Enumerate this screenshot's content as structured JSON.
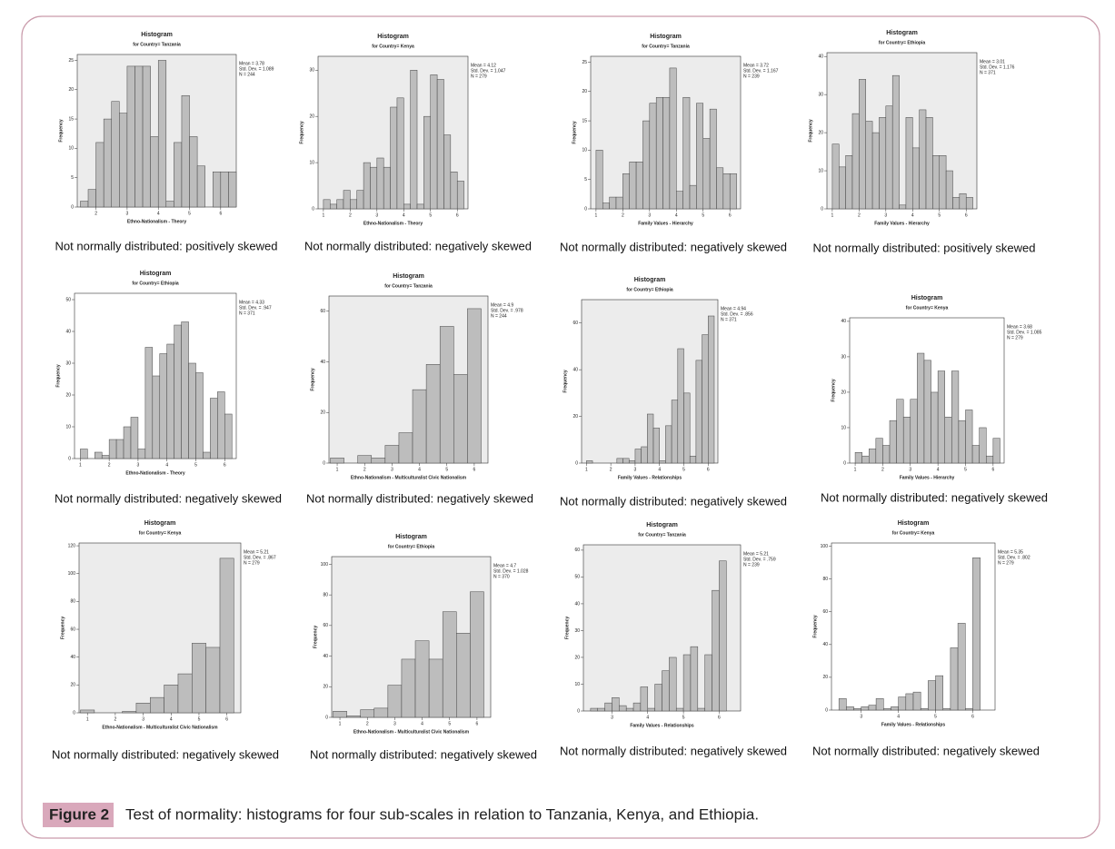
{
  "chart_data": [
    {
      "type": "histogram",
      "title": "Histogram",
      "subtitle": "for Country= Tanzania",
      "xlabel": "Ethno-Nationalism - Theory",
      "ylabel": "Frequency",
      "stats": [
        "Mean = 3.78",
        "Std. Dev. = 1.089",
        "N = 244"
      ],
      "xlim": [
        1.4,
        6.5
      ],
      "xticks": [
        2,
        3,
        4,
        5,
        6
      ],
      "ylim": [
        0,
        26
      ],
      "yticks": [
        0,
        5,
        10,
        15,
        20,
        25
      ],
      "bins": [
        1.5,
        1.75,
        2,
        2.25,
        2.5,
        2.75,
        3,
        3.25,
        3.5,
        3.75,
        4,
        4.25,
        4.5,
        4.75,
        5,
        5.25,
        5.5,
        5.75,
        6,
        6.25,
        6.5
      ],
      "values": [
        1,
        3,
        11,
        15,
        18,
        16,
        24,
        24,
        24,
        12,
        25,
        1,
        11,
        19,
        12,
        7,
        0,
        6,
        6,
        6
      ],
      "color": "#bdbdbd",
      "background": "#ececec"
    },
    {
      "type": "histogram",
      "title": "Histogram",
      "subtitle": "for Country= Kenya",
      "xlabel": "Ethno-Nationalism - Theory",
      "ylabel": "Frequency",
      "stats": [
        "Mean = 4.12",
        "Std. Dev. = 1.047",
        "N = 279"
      ],
      "xlim": [
        0.8,
        6.4
      ],
      "xticks": [
        1,
        2,
        3,
        4,
        5,
        6
      ],
      "ylim": [
        0,
        33
      ],
      "yticks": [
        0,
        10,
        20,
        30
      ],
      "bins": [
        1,
        1.25,
        1.5,
        1.75,
        2,
        2.25,
        2.5,
        2.75,
        3,
        3.25,
        3.5,
        3.75,
        4,
        4.25,
        4.5,
        4.75,
        5,
        5.25,
        5.5,
        5.75,
        6,
        6.25
      ],
      "values": [
        2,
        1,
        2,
        4,
        2,
        4,
        10,
        9,
        11,
        9,
        22,
        24,
        1,
        30,
        1,
        20,
        29,
        28,
        16,
        8,
        6
      ],
      "color": "#bdbdbd",
      "background": "#ececec"
    },
    {
      "type": "histogram",
      "title": "Histogram",
      "subtitle": "for Country= Tanzania",
      "xlabel": "Family Values - Hierarchy",
      "ylabel": "Frequency",
      "stats": [
        "Mean = 3.72",
        "Std. Dev. = 1.167",
        "N = 239"
      ],
      "xlim": [
        0.8,
        6.4
      ],
      "xticks": [
        1,
        2,
        3,
        4,
        5,
        6
      ],
      "ylim": [
        0,
        26
      ],
      "yticks": [
        0,
        5,
        10,
        15,
        20,
        25
      ],
      "bins": [
        1,
        1.25,
        1.5,
        1.75,
        2,
        2.25,
        2.5,
        2.75,
        3,
        3.25,
        3.5,
        3.75,
        4,
        4.25,
        4.5,
        4.75,
        5,
        5.25,
        5.5,
        5.75,
        6,
        6.25
      ],
      "values": [
        10,
        1,
        2,
        2,
        6,
        8,
        8,
        15,
        18,
        19,
        19,
        24,
        3,
        19,
        4,
        18,
        12,
        17,
        7,
        6,
        6
      ],
      "color": "#bdbdbd",
      "background": "#ececec"
    },
    {
      "type": "histogram",
      "title": "Histogram",
      "subtitle": "for Country= Ethiopia",
      "xlabel": "Family Values - Hierarchy",
      "ylabel": "Frequency",
      "stats": [
        "Mean = 3.01",
        "Std. Dev. = 1.176",
        "N = 371"
      ],
      "xlim": [
        0.8,
        6.4
      ],
      "xticks": [
        1,
        2,
        3,
        4,
        5,
        6
      ],
      "ylim": [
        0,
        41
      ],
      "yticks": [
        0,
        10,
        20,
        30,
        40
      ],
      "bins": [
        1,
        1.25,
        1.5,
        1.75,
        2,
        2.25,
        2.5,
        2.75,
        3,
        3.25,
        3.5,
        3.75,
        4,
        4.25,
        4.5,
        4.75,
        5,
        5.25,
        5.5,
        5.75,
        6,
        6.25
      ],
      "values": [
        17,
        11,
        14,
        25,
        34,
        23,
        20,
        24,
        27,
        35,
        1,
        24,
        16,
        26,
        24,
        14,
        14,
        10,
        3,
        4,
        3
      ],
      "color": "#bdbdbd",
      "background": "#ececec"
    },
    {
      "type": "histogram",
      "title": "Histogram",
      "subtitle": "for Country= Ethiopia",
      "xlabel": "Ethno-Nationalism - Theory",
      "ylabel": "Frequency",
      "stats": [
        "Mean = 4.33",
        "Std. Dev. = .947",
        "N = 371"
      ],
      "xlim": [
        0.8,
        6.4
      ],
      "xticks": [
        1,
        2,
        3,
        4,
        5,
        6
      ],
      "ylim": [
        0,
        52
      ],
      "yticks": [
        0,
        10,
        20,
        30,
        40,
        50
      ],
      "bins": [
        1,
        1.25,
        1.5,
        1.75,
        2,
        2.25,
        2.5,
        2.75,
        3,
        3.25,
        3.5,
        3.75,
        4,
        4.25,
        4.5,
        4.75,
        5,
        5.25,
        5.5,
        5.75,
        6,
        6.25
      ],
      "values": [
        3,
        0,
        2,
        1,
        6,
        6,
        10,
        13,
        3,
        35,
        26,
        33,
        36,
        42,
        43,
        30,
        27,
        2,
        19,
        21,
        14
      ],
      "color": "#bdbdbd",
      "background": "#ffffff"
    },
    {
      "type": "histogram",
      "title": "Histogram",
      "subtitle": "for Country= Tanzania",
      "xlabel": "Ethno-Nationalism - Multiculturalist Civic Nationalism",
      "ylabel": "Frequency",
      "stats": [
        "Mean = 4.9",
        "Std. Dev. = .978",
        "N = 244"
      ],
      "xlim": [
        0.7,
        6.5
      ],
      "xticks": [
        1,
        2,
        3,
        4,
        5,
        6
      ],
      "ylim": [
        0,
        66
      ],
      "yticks": [
        0,
        20,
        40,
        60
      ],
      "bins": [
        0.75,
        1.25,
        1.75,
        2.25,
        2.75,
        3.25,
        3.75,
        4.25,
        4.75,
        5.25,
        5.75,
        6.25
      ],
      "values": [
        2,
        0,
        3,
        2,
        7,
        12,
        29,
        39,
        54,
        35,
        61
      ],
      "color": "#bdbdbd",
      "background": "#ececec"
    },
    {
      "type": "histogram",
      "title": "Histogram",
      "subtitle": "for Country= Ethiopia",
      "xlabel": "Family Values - Relationships",
      "ylabel": "Frequency",
      "stats": [
        "Mean = 4.94",
        "Std. Dev. = .856",
        "N = 371"
      ],
      "xlim": [
        0.8,
        6.4
      ],
      "xticks": [
        1,
        2,
        3,
        4,
        5,
        6
      ],
      "ylim": [
        0,
        70
      ],
      "yticks": [
        0,
        20,
        40,
        60
      ],
      "bins": [
        1,
        1.25,
        1.5,
        1.75,
        2,
        2.25,
        2.5,
        2.75,
        3,
        3.25,
        3.5,
        3.75,
        4,
        4.25,
        4.5,
        4.75,
        5,
        5.25,
        5.5,
        5.75,
        6,
        6.25
      ],
      "values": [
        1,
        0,
        0,
        0,
        0,
        2,
        2,
        1,
        6,
        7,
        21,
        15,
        1,
        16,
        27,
        49,
        30,
        3,
        44,
        55,
        63
      ],
      "color": "#bdbdbd",
      "background": "#ececec"
    },
    {
      "type": "histogram",
      "title": "Histogram",
      "subtitle": "for Country= Kenya",
      "xlabel": "Family Values - Hierarchy",
      "ylabel": "Frequency",
      "stats": [
        "Mean = 3.68",
        "Std. Dev. = 1.085",
        "N = 279"
      ],
      "xlim": [
        0.8,
        6.4
      ],
      "xticks": [
        1,
        2,
        3,
        4,
        5,
        6
      ],
      "ylim": [
        0,
        41
      ],
      "yticks": [
        0,
        10,
        20,
        30,
        40
      ],
      "bins": [
        1,
        1.25,
        1.5,
        1.75,
        2,
        2.25,
        2.5,
        2.75,
        3,
        3.25,
        3.5,
        3.75,
        4,
        4.25,
        4.5,
        4.75,
        5,
        5.25,
        5.5,
        5.75,
        6,
        6.25
      ],
      "values": [
        3,
        2,
        4,
        7,
        5,
        12,
        18,
        13,
        18,
        31,
        29,
        20,
        26,
        13,
        26,
        12,
        15,
        5,
        10,
        2,
        7
      ],
      "color": "#bdbdbd",
      "background": "#ffffff"
    },
    {
      "type": "histogram",
      "title": "Histogram",
      "subtitle": "for Country= Kenya",
      "xlabel": "Ethno-Nationalism - Multiculturalist Civic Nationalism",
      "ylabel": "Frequency",
      "stats": [
        "Mean = 5.21",
        "Std. Dev. = .867",
        "N = 279"
      ],
      "xlim": [
        0.7,
        6.5
      ],
      "xticks": [
        1,
        2,
        3,
        4,
        5,
        6
      ],
      "ylim": [
        0,
        122
      ],
      "yticks": [
        0,
        20,
        40,
        60,
        80,
        100,
        120
      ],
      "bins": [
        0.75,
        1.25,
        1.75,
        2.25,
        2.75,
        3.25,
        3.75,
        4.25,
        4.75,
        5.25,
        5.75,
        6.25
      ],
      "values": [
        2,
        0,
        0,
        1,
        7,
        11,
        20,
        28,
        50,
        47,
        111
      ],
      "color": "#bdbdbd",
      "background": "#ececec"
    },
    {
      "type": "histogram",
      "title": "Histogram",
      "subtitle": "for Country= Ethiopia",
      "xlabel": "Ethno-Nationalism - Multiculturalist Civic Nationalism",
      "ylabel": "Frequency",
      "stats": [
        "Mean = 4.7",
        "Std. Dev. = 1.028",
        "N = 370"
      ],
      "xlim": [
        0.7,
        6.5
      ],
      "xticks": [
        1,
        2,
        3,
        4,
        5,
        6
      ],
      "ylim": [
        0,
        105
      ],
      "yticks": [
        0,
        20,
        40,
        60,
        80,
        100
      ],
      "bins": [
        0.75,
        1.25,
        1.75,
        2.25,
        2.75,
        3.25,
        3.75,
        4.25,
        4.75,
        5.25,
        5.75,
        6.25
      ],
      "values": [
        4,
        1,
        5,
        6,
        21,
        38,
        50,
        38,
        69,
        55,
        82
      ],
      "color": "#bdbdbd",
      "background": "#ececec"
    },
    {
      "type": "histogram",
      "title": "Histogram",
      "subtitle": "for Country= Tanzania",
      "xlabel": "Family Values - Relationships",
      "ylabel": "Frequency",
      "stats": [
        "Mean = 5.21",
        "Std. Dev. = .759",
        "N = 239"
      ],
      "xlim": [
        2.2,
        6.6
      ],
      "xticks": [
        3,
        4,
        5,
        6
      ],
      "ylim": [
        0,
        62
      ],
      "yticks": [
        0,
        10,
        20,
        30,
        40,
        50,
        60
      ],
      "bins": [
        2.4,
        2.6,
        2.8,
        3,
        3.2,
        3.4,
        3.6,
        3.8,
        4,
        4.2,
        4.4,
        4.6,
        4.8,
        5,
        5.2,
        5.4,
        5.6,
        5.8,
        6,
        6.2,
        6.4
      ],
      "values": [
        1,
        1,
        3,
        5,
        2,
        1,
        3,
        9,
        1,
        10,
        15,
        20,
        1,
        21,
        24,
        1,
        21,
        45,
        56,
        0
      ],
      "color": "#bdbdbd",
      "background": "#ececec"
    },
    {
      "type": "histogram",
      "title": "Histogram",
      "subtitle": "for Country= Kenya",
      "xlabel": "Family Values - Relationships",
      "ylabel": "Frequency",
      "stats": [
        "Mean = 5.35",
        "Std. Dev. = .802",
        "N = 279"
      ],
      "xlim": [
        2.2,
        6.6
      ],
      "xticks": [
        3,
        4,
        5,
        6
      ],
      "ylim": [
        0,
        102
      ],
      "yticks": [
        0,
        20,
        40,
        60,
        80,
        100
      ],
      "bins": [
        2.4,
        2.6,
        2.8,
        3,
        3.2,
        3.4,
        3.6,
        3.8,
        4,
        4.2,
        4.4,
        4.6,
        4.8,
        5,
        5.2,
        5.4,
        5.6,
        5.8,
        6,
        6.2,
        6.4
      ],
      "values": [
        7,
        2,
        1,
        2,
        3,
        7,
        1,
        2,
        8,
        10,
        11,
        1,
        18,
        21,
        1,
        38,
        53,
        1,
        93,
        0
      ],
      "color": "#bdbdbd",
      "background": "#ffffff"
    }
  ],
  "panel_captions": [
    "Not normally distributed: positively skewed",
    "Not normally distributed: negatively skewed",
    "Not normally distributed: negatively skewed",
    "Not normally distributed: positively skewed",
    "Not normally distributed: negatively skewed",
    "Not normally distributed: negatively skewed",
    "Not normally distributed: negatively skewed",
    "Not normally distributed: negatively skewed",
    "Not normally distributed: negatively skewed",
    "Not normally distributed: negatively skewed",
    "Not normally distributed: negatively skewed",
    "Not normally distributed: negatively skewed"
  ],
  "figure": {
    "label": "Figure 2",
    "caption": "Test of normality: histograms for four sub-scales in relation to Tanzania, Kenya, and Ethiopia."
  }
}
